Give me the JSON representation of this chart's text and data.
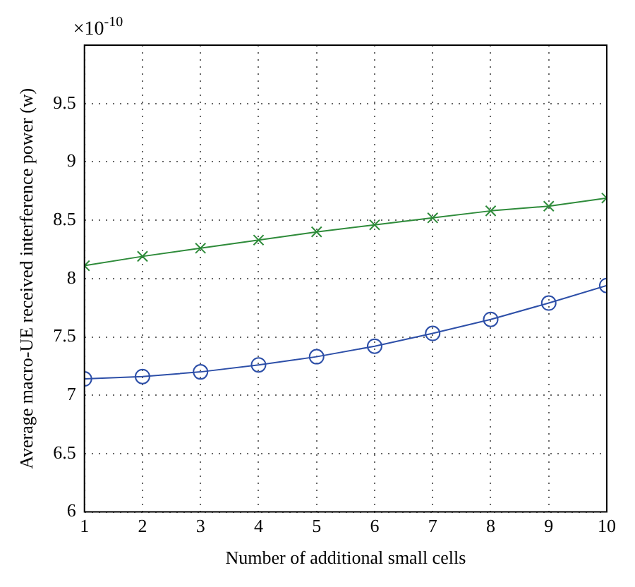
{
  "chart_data": {
    "type": "line",
    "xlabel": "Number of additional small cells",
    "ylabel": "Average macro-UE received interference power (w)",
    "annotations": [
      "×10$^{-10}$"
    ],
    "x": [
      1,
      2,
      3,
      4,
      5,
      6,
      7,
      8,
      9,
      10
    ],
    "series": [
      {
        "color": "#2e8b3a",
        "marker": "cross",
        "values": [
          8.11,
          8.19,
          8.26,
          8.33,
          8.4,
          8.46,
          8.52,
          8.58,
          8.62,
          8.69
        ]
      },
      {
        "color": "#2d4fa8",
        "marker": "circle",
        "values": [
          7.14,
          7.16,
          7.2,
          7.26,
          7.33,
          7.42,
          7.53,
          7.65,
          7.79,
          7.94
        ]
      }
    ],
    "xlim": [
      1,
      10
    ],
    "xticks": [
      1,
      2,
      3,
      4,
      5,
      6,
      7,
      8,
      9,
      10
    ],
    "ylim": [
      6,
      10
    ],
    "yticks": [
      6,
      6.5,
      7,
      7.5,
      8,
      8.5,
      9,
      9.5
    ],
    "grid": true,
    "line_style": "solid"
  }
}
